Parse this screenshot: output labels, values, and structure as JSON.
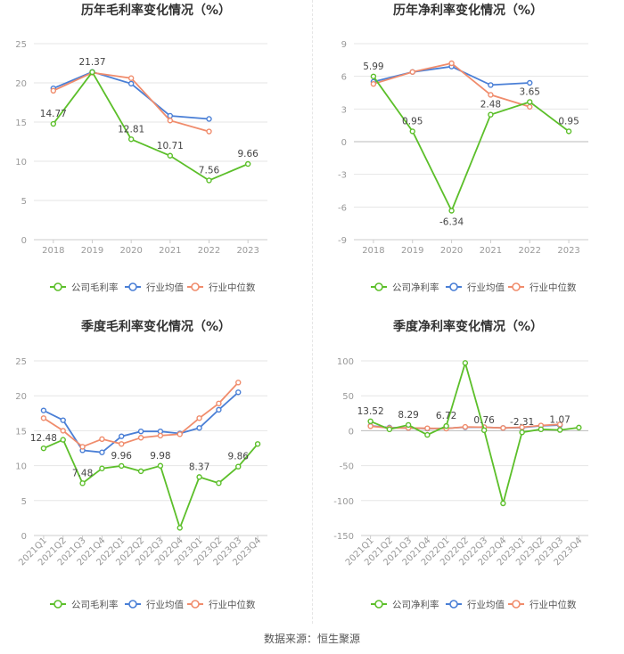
{
  "footer": {
    "source": "数据来源：恒生聚源"
  },
  "colors": {
    "company": "#5cbf2a",
    "avg": "#4a7fd6",
    "median": "#f08c6c",
    "grid": "#e6e6e6",
    "axis": "#999999",
    "title": "#333333",
    "label": "#444444"
  },
  "chart_data": [
    {
      "type": "line",
      "title": "历年毛利率变化情况（%）",
      "categories": [
        "2018",
        "2019",
        "2020",
        "2021",
        "2022",
        "2023"
      ],
      "ylim": [
        0,
        25
      ],
      "yticks": [
        0,
        5,
        10,
        15,
        20,
        25
      ],
      "series": [
        {
          "name": "公司毛利率",
          "color": "#5cbf2a",
          "values": [
            14.77,
            21.37,
            12.81,
            10.71,
            7.56,
            9.66
          ]
        },
        {
          "name": "行业均值",
          "color": "#4a7fd6",
          "values": [
            19.3,
            21.4,
            19.9,
            15.8,
            15.4,
            null
          ]
        },
        {
          "name": "行业中位数",
          "color": "#f08c6c",
          "values": [
            19.0,
            21.3,
            20.6,
            15.2,
            13.8,
            null
          ]
        }
      ],
      "data_labels": [
        {
          "series": 0,
          "index": 0,
          "text": "14.77"
        },
        {
          "series": 0,
          "index": 1,
          "text": "21.37"
        },
        {
          "series": 0,
          "index": 2,
          "text": "12.81"
        },
        {
          "series": 0,
          "index": 3,
          "text": "10.71"
        },
        {
          "series": 0,
          "index": 4,
          "text": "7.56"
        },
        {
          "series": 0,
          "index": 5,
          "text": "9.66"
        }
      ],
      "legend_position": "bottom"
    },
    {
      "type": "line",
      "title": "历年净利率变化情况（%）",
      "categories": [
        "2018",
        "2019",
        "2020",
        "2021",
        "2022",
        "2023"
      ],
      "ylim": [
        -9,
        9
      ],
      "yticks": [
        -9,
        -6,
        -3,
        0,
        3,
        6,
        9
      ],
      "series": [
        {
          "name": "公司净利率",
          "color": "#5cbf2a",
          "values": [
            5.99,
            0.95,
            -6.34,
            2.48,
            3.65,
            0.95
          ]
        },
        {
          "name": "行业均值",
          "color": "#4a7fd6",
          "values": [
            5.5,
            6.4,
            6.9,
            5.2,
            5.4,
            null
          ]
        },
        {
          "name": "行业中位数",
          "color": "#f08c6c",
          "values": [
            5.3,
            6.4,
            7.2,
            4.3,
            3.2,
            null
          ]
        }
      ],
      "data_labels": [
        {
          "series": 0,
          "index": 0,
          "text": "5.99"
        },
        {
          "series": 0,
          "index": 1,
          "text": "0.95"
        },
        {
          "series": 0,
          "index": 2,
          "text": "-6.34"
        },
        {
          "series": 0,
          "index": 3,
          "text": "2.48"
        },
        {
          "series": 0,
          "index": 4,
          "text": "3.65"
        },
        {
          "series": 0,
          "index": 5,
          "text": "0.95"
        }
      ],
      "legend_position": "bottom"
    },
    {
      "type": "line",
      "title": "季度毛利率变化情况（%）",
      "categories": [
        "2021Q1",
        "2021Q2",
        "2021Q3",
        "2021Q4",
        "2022Q1",
        "2022Q2",
        "2022Q3",
        "2022Q4",
        "2023Q1",
        "2023Q2",
        "2023Q3",
        "2023Q4"
      ],
      "ylim": [
        0,
        25
      ],
      "yticks": [
        0,
        5,
        10,
        15,
        20,
        25
      ],
      "series": [
        {
          "name": "公司毛利率",
          "color": "#5cbf2a",
          "values": [
            12.48,
            13.7,
            7.48,
            9.6,
            9.96,
            9.2,
            9.98,
            1.1,
            8.37,
            7.5,
            9.86,
            13.1
          ]
        },
        {
          "name": "行业均值",
          "color": "#4a7fd6",
          "values": [
            17.9,
            16.5,
            12.2,
            11.9,
            14.2,
            14.9,
            14.9,
            14.6,
            15.4,
            18.0,
            20.5,
            null
          ]
        },
        {
          "name": "行业中位数",
          "color": "#f08c6c",
          "values": [
            16.8,
            15.0,
            12.7,
            13.8,
            13.1,
            14.0,
            14.3,
            14.5,
            16.8,
            18.9,
            21.9,
            null
          ]
        }
      ],
      "data_labels": [
        {
          "series": 0,
          "index": 0,
          "text": "12.48"
        },
        {
          "series": 0,
          "index": 2,
          "text": "7.48"
        },
        {
          "series": 0,
          "index": 4,
          "text": "9.96"
        },
        {
          "series": 0,
          "index": 6,
          "text": "9.98"
        },
        {
          "series": 0,
          "index": 8,
          "text": "8.37"
        },
        {
          "series": 0,
          "index": 10,
          "text": "9.86"
        }
      ],
      "legend_position": "bottom"
    },
    {
      "type": "line",
      "title": "季度净利率变化情况（%）",
      "categories": [
        "2021Q1",
        "2021Q2",
        "2021Q3",
        "2021Q4",
        "2022Q1",
        "2022Q2",
        "2022Q3",
        "2022Q4",
        "2023Q1",
        "2023Q2",
        "2023Q3",
        "2023Q4"
      ],
      "ylim": [
        -150,
        100
      ],
      "yticks": [
        -150,
        -100,
        -50,
        0,
        50,
        100
      ],
      "series": [
        {
          "name": "公司净利率",
          "color": "#5cbf2a",
          "values": [
            13.52,
            2.0,
            8.29,
            -6.0,
            6.72,
            97.0,
            0.76,
            -104.0,
            -2.31,
            2.0,
            1.07,
            4.5
          ]
        },
        {
          "name": "行业均值",
          "color": "#4a7fd6",
          "values": [
            7.0,
            4.5,
            4.0,
            3.0,
            3.5,
            5.0,
            5.0,
            4.0,
            4.5,
            7.0,
            8.0,
            null
          ]
        },
        {
          "name": "行业中位数",
          "color": "#f08c6c",
          "values": [
            6.5,
            4.0,
            4.0,
            3.5,
            3.0,
            5.5,
            5.0,
            4.0,
            5.0,
            7.5,
            9.0,
            null
          ]
        }
      ],
      "data_labels": [
        {
          "series": 0,
          "index": 0,
          "text": "13.52"
        },
        {
          "series": 0,
          "index": 2,
          "text": "8.29"
        },
        {
          "series": 0,
          "index": 4,
          "text": "6.72"
        },
        {
          "series": 0,
          "index": 6,
          "text": "0.76"
        },
        {
          "series": 0,
          "index": 8,
          "text": "-2.31"
        },
        {
          "series": 0,
          "index": 10,
          "text": "1.07"
        }
      ],
      "legend_position": "bottom"
    }
  ]
}
